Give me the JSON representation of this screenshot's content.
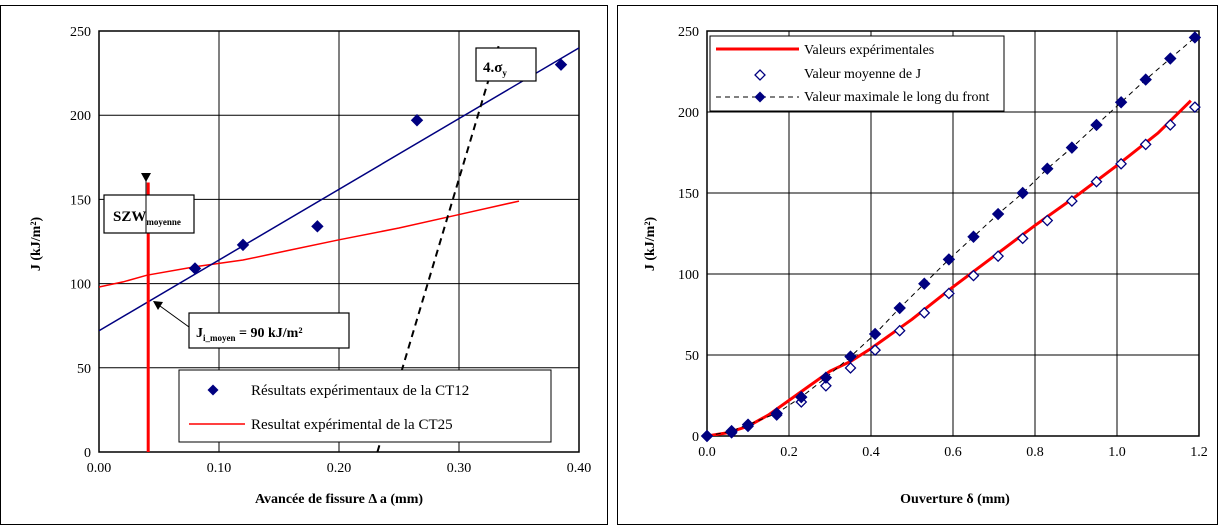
{
  "colors": {
    "blue": "#000080",
    "red": "#ff0000",
    "black": "#000000",
    "grid": "#000000"
  },
  "chart_data": [
    {
      "type": "scatter",
      "xlabel": "Avancée de fissure Δ a (mm)",
      "ylabel": "J (kJ/m²)",
      "xlim": [
        0,
        0.4
      ],
      "ylim": [
        0,
        250
      ],
      "xticks": [
        "0.00",
        "0.10",
        "0.20",
        "0.30",
        "0.40"
      ],
      "yticks": [
        "0",
        "50",
        "100",
        "150",
        "200",
        "250"
      ],
      "grid": true,
      "legend_position": "bottom-right",
      "series": [
        {
          "name": "Résultats expérimentaux de la CT12",
          "kind": "markers",
          "marker": "diamond-filled",
          "color": "#000080",
          "x": [
            0.08,
            0.12,
            0.182,
            0.265,
            0.385
          ],
          "y": [
            109,
            123,
            134,
            197,
            230
          ]
        },
        {
          "name": "Resultat expérimental de la CT25",
          "kind": "line",
          "color": "#ff0000",
          "x": [
            0.0,
            0.02,
            0.04,
            0.08,
            0.12,
            0.16,
            0.2,
            0.25,
            0.3,
            0.35
          ],
          "y": [
            98,
            101,
            105,
            110,
            114,
            120,
            126,
            133,
            141,
            149
          ]
        },
        {
          "kind": "line",
          "color": "#000080",
          "x": [
            0.0,
            0.4
          ],
          "y": [
            72,
            240
          ]
        },
        {
          "kind": "line-dashed",
          "color": "#000000",
          "x": [
            0.232,
            0.333
          ],
          "y": [
            0,
            241
          ]
        }
      ],
      "annotations": {
        "szw_line": {
          "x": 0.041,
          "ytop": 160,
          "ybottom": 0,
          "color": "#ff0000"
        },
        "szw_label": {
          "main": "SZW",
          "sub": "moyenne"
        },
        "ji_label": {
          "prefix": "J",
          "sub": "i_moyen",
          "suffix": " = 90 kJ/m²"
        },
        "sigma_label": {
          "main": "4.σ",
          "sub": "y"
        }
      }
    },
    {
      "type": "line",
      "xlabel": "Ouverture δ (mm)",
      "ylabel": "J (kJ/m²)",
      "xlim": [
        0,
        1.2
      ],
      "ylim": [
        0,
        250
      ],
      "xticks": [
        "0.0",
        "0.2",
        "0.4",
        "0.6",
        "0.8",
        "1.0",
        "1.2"
      ],
      "yticks": [
        "0",
        "50",
        "100",
        "150",
        "200",
        "250"
      ],
      "grid": true,
      "legend_position": "top-left",
      "series": [
        {
          "name": "Valeurs expérimentales",
          "kind": "line",
          "color": "#ff0000",
          "x": [
            0.0,
            0.05,
            0.1,
            0.15,
            0.2,
            0.25,
            0.3,
            0.35,
            0.4,
            0.5,
            0.6,
            0.7,
            0.8,
            0.9,
            1.0,
            1.1,
            1.18
          ],
          "y": [
            0,
            2,
            6,
            13,
            22,
            31,
            40,
            46,
            54,
            72,
            92,
            111,
            130,
            148,
            167,
            187,
            207
          ]
        },
        {
          "name": "Valeur moyenne de J",
          "kind": "markers",
          "marker": "diamond-open",
          "color": "#000080",
          "x": [
            0.0,
            0.06,
            0.1,
            0.17,
            0.23,
            0.29,
            0.35,
            0.41,
            0.47,
            0.53,
            0.59,
            0.65,
            0.71,
            0.77,
            0.83,
            0.89,
            0.95,
            1.01,
            1.07,
            1.13,
            1.19
          ],
          "y": [
            0,
            2,
            6,
            13,
            21,
            31,
            42,
            53,
            65,
            76,
            88,
            99,
            111,
            122,
            133,
            145,
            157,
            168,
            180,
            192,
            203
          ]
        },
        {
          "name": "Valeur maximale le long du front",
          "kind": "line-dashed-markers",
          "marker": "diamond-filled",
          "color": "#000080",
          "x": [
            0.0,
            0.06,
            0.1,
            0.17,
            0.23,
            0.29,
            0.35,
            0.41,
            0.47,
            0.53,
            0.59,
            0.65,
            0.71,
            0.77,
            0.83,
            0.89,
            0.95,
            1.01,
            1.07,
            1.13,
            1.19
          ],
          "y": [
            0,
            3,
            7,
            14,
            24,
            36,
            49,
            63,
            79,
            94,
            109,
            123,
            137,
            150,
            165,
            178,
            192,
            206,
            220,
            233,
            246
          ]
        }
      ]
    }
  ]
}
